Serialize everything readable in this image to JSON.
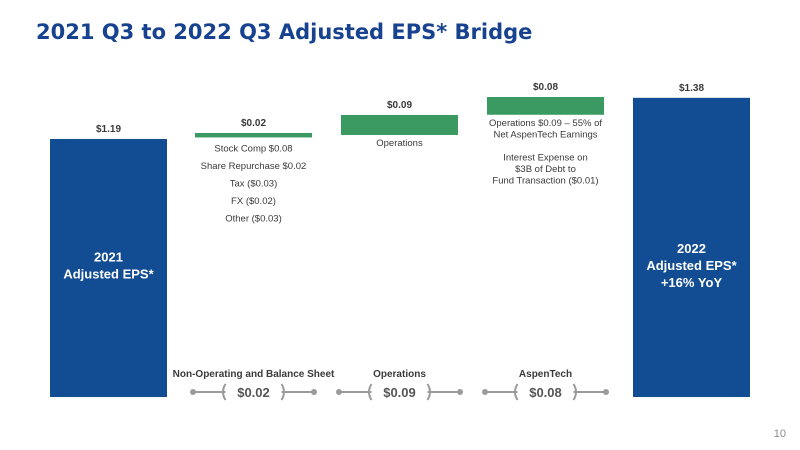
{
  "title": "2021 Q3 to 2022 Q3 Adjusted EPS* Bridge",
  "page_number": "10",
  "colors": {
    "start_end": "#124d93",
    "increase": "#3a9a62",
    "title": "#17428f",
    "connector": "#9b9b9b"
  },
  "chart_data": {
    "type": "bar",
    "subtype": "waterfall",
    "categories": [
      "2021 Adjusted EPS*",
      "Non-Operating and Balance Sheet",
      "Operations",
      "AspenTech",
      "2022 Adjusted EPS* +16% YoY"
    ],
    "bars": [
      {
        "kind": "total",
        "base": 0,
        "value": 1.19,
        "label": "$1.19",
        "inner_lines": [
          "2021",
          "Adjusted EPS*"
        ]
      },
      {
        "kind": "delta",
        "base": 1.19,
        "value": 0.02,
        "label": "$0.02",
        "notes": [
          "Stock Comp $0.08",
          "Share Repurchase $0.02",
          "Tax ($0.03)",
          "FX ($0.02)",
          "Other ($0.03)"
        ]
      },
      {
        "kind": "delta",
        "base": 1.21,
        "value": 0.09,
        "label": "$0.09",
        "notes": [
          "Operations"
        ]
      },
      {
        "kind": "delta",
        "base": 1.3,
        "value": 0.08,
        "label": "$0.08",
        "notes": [
          "Operations $0.09 – 55% of",
          "Net AspenTech Earnings",
          "",
          "Interest Expense on",
          "$3B of Debt to",
          "Fund Transaction ($0.01)"
        ]
      },
      {
        "kind": "total",
        "base": 0,
        "value": 1.38,
        "label": "$1.38",
        "inner_lines": [
          "2022",
          "Adjusted EPS*",
          "+16% YoY"
        ]
      }
    ],
    "groups": [
      {
        "name": "Non-Operating and Balance Sheet",
        "value_label": "$0.02"
      },
      {
        "name": "Operations",
        "value_label": "$0.09"
      },
      {
        "name": "AspenTech",
        "value_label": "$0.08"
      }
    ]
  }
}
